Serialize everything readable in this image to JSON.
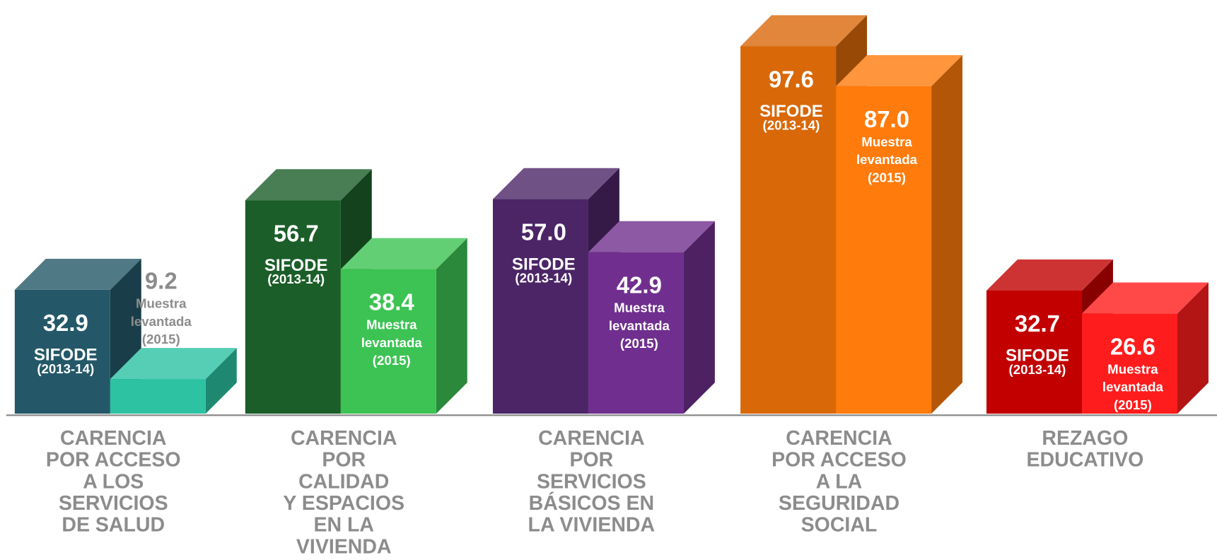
{
  "chart_data": {
    "type": "bar3d",
    "categories": [
      [
        "CARENCIA",
        "POR ACCESO",
        "A LOS",
        "SERVICIOS",
        "DE SALUD"
      ],
      [
        "CARENCIA",
        "POR",
        "CALIDAD",
        "Y ESPACIOS",
        "EN LA",
        "VIVIENDA"
      ],
      [
        "CARENCIA",
        "POR",
        "SERVICIOS",
        "BÁSICOS EN",
        "LA VIVIENDA"
      ],
      [
        "CARENCIA",
        "POR ACCESO",
        "A LA",
        "SEGURIDAD",
        "SOCIAL"
      ],
      [
        "REZAGO",
        "EDUCATIVO"
      ]
    ],
    "series": [
      {
        "name": [
          "SIFODE",
          "(2013-14)"
        ],
        "values": [
          32.9,
          56.7,
          57.0,
          97.6,
          32.7
        ],
        "value_labels": [
          "32.9",
          "56.7",
          "57.0",
          "97.6",
          "32.7"
        ],
        "colors": [
          "#245868",
          "#1b5e29",
          "#4b2566",
          "#d96809",
          "#c20000"
        ]
      },
      {
        "name": [
          "Muestra",
          "levantada",
          "(2015)"
        ],
        "values": [
          9.2,
          38.4,
          42.9,
          87.0,
          26.6
        ],
        "value_labels": [
          "9.2",
          "38.4",
          "42.9",
          "87.0",
          "26.6"
        ],
        "colors": [
          "#2cc2a2",
          "#3cc353",
          "#702f8e",
          "#ff7b0b",
          "#ff1c1c"
        ]
      }
    ],
    "ylim": [
      0,
      100
    ]
  }
}
